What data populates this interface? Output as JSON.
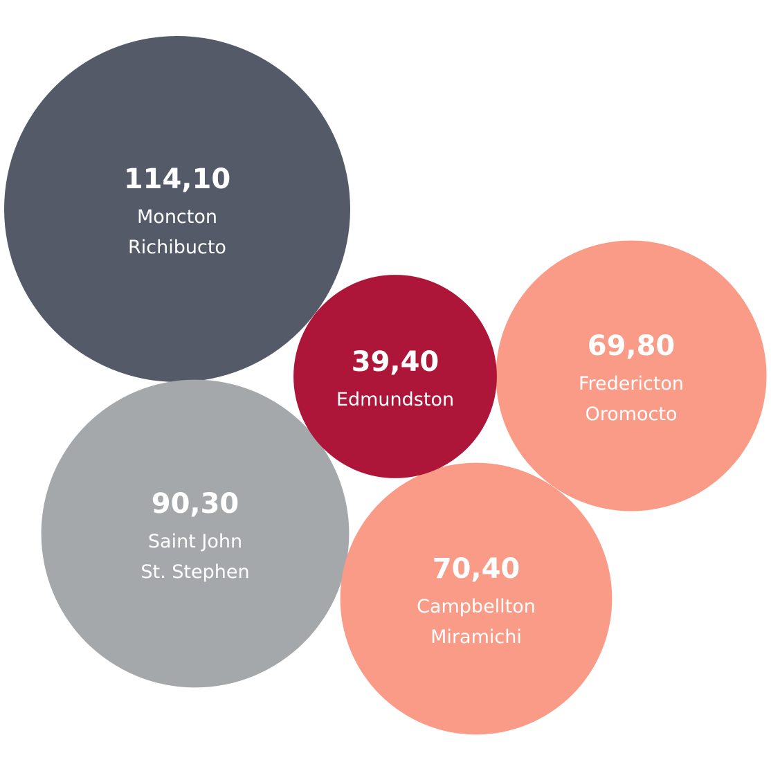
{
  "chart_data": {
    "type": "bubble",
    "title": "",
    "value_unit": "",
    "bubbles": [
      {
        "value": "114,10",
        "numeric_value": 114.1,
        "label_lines": [
          "Moncton",
          "Richibucto"
        ],
        "color": "#545A67"
      },
      {
        "value": "90,30",
        "numeric_value": 90.3,
        "label_lines": [
          "Saint John",
          "St. Stephen"
        ],
        "color": "#A5A8AA"
      },
      {
        "value": "70,40",
        "numeric_value": 70.4,
        "label_lines": [
          "Campbellton",
          "Miramichi"
        ],
        "color": "#FA9B87"
      },
      {
        "value": "69,80",
        "numeric_value": 69.8,
        "label_lines": [
          "Fredericton",
          "Oromocto"
        ],
        "color": "#FA9B87"
      },
      {
        "value": "39,40",
        "numeric_value": 39.4,
        "label_lines": [
          "Edmundston"
        ],
        "color": "#AD1539"
      }
    ]
  }
}
